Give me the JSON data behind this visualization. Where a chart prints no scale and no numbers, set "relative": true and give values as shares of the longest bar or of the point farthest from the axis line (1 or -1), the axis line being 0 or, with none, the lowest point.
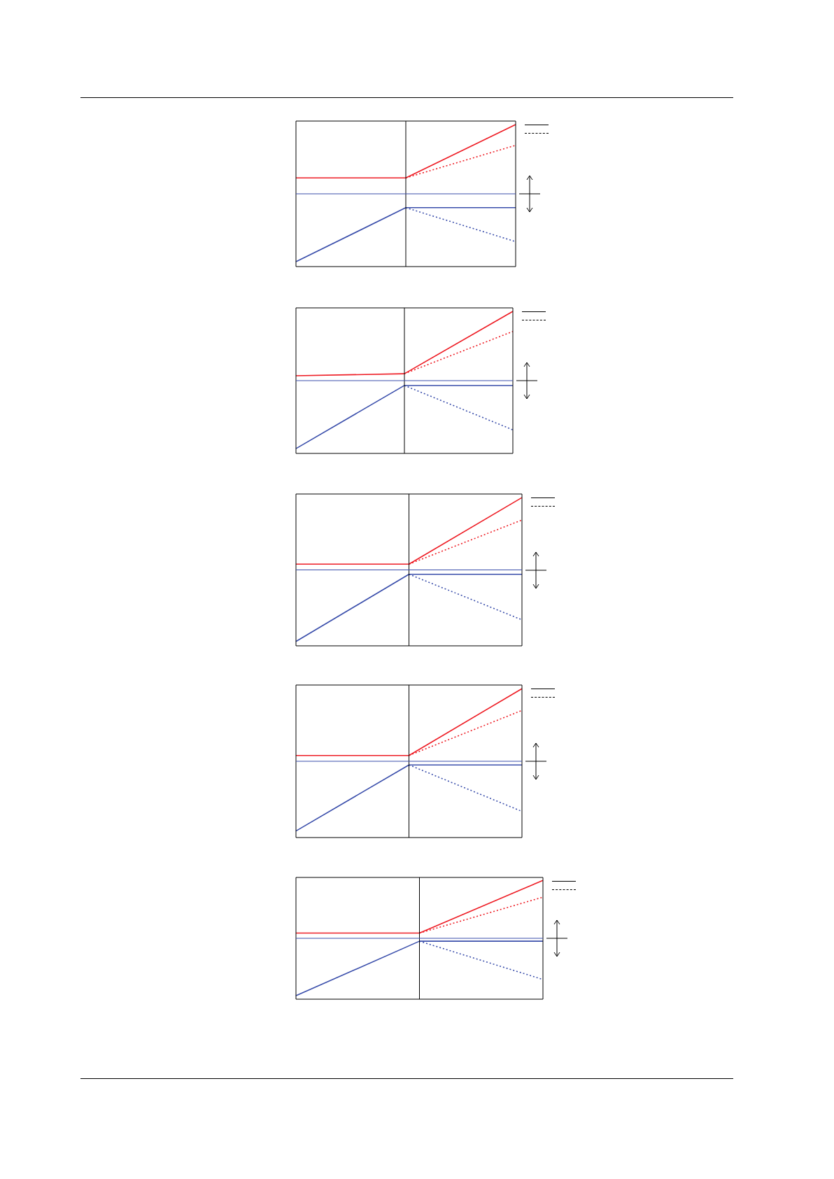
{
  "chart_data": [
    {
      "type": "line",
      "relative": true,
      "categories": [
        null,
        null,
        null
      ],
      "series": [
        {
          "color": "#ee1c24",
          "line_style": "solid",
          "values": [
            0.23,
            0.23,
            1
          ]
        },
        {
          "color": "#ee1c24",
          "line_style": "dotted",
          "values": [
            null,
            0.23,
            0.7
          ]
        },
        {
          "color": "#3a4eab",
          "line_style": "solid",
          "values": [
            -0.98,
            -0.2,
            -0.2
          ]
        },
        {
          "color": "#3a4eab",
          "line_style": "dotted",
          "values": [
            null,
            -0.2,
            -0.69
          ]
        }
      ],
      "ref_lines": [
        {
          "axis": "y",
          "value": 0,
          "color": "#3a4eab"
        }
      ]
    },
    {
      "type": "line",
      "relative": true,
      "categories": [
        null,
        null,
        null
      ],
      "series": [
        {
          "color": "#ee1c24",
          "line_style": "solid",
          "values": [
            0.07,
            0.1,
            1
          ]
        },
        {
          "color": "#ee1c24",
          "line_style": "dotted",
          "values": [
            null,
            0.1,
            0.71
          ]
        },
        {
          "color": "#3a4eab",
          "line_style": "solid",
          "values": [
            -0.98,
            -0.07,
            -0.07
          ]
        },
        {
          "color": "#3a4eab",
          "line_style": "dotted",
          "values": [
            null,
            -0.07,
            -0.71
          ]
        }
      ],
      "ref_lines": [
        {
          "axis": "y",
          "value": 0,
          "color": "#3a4eab"
        }
      ]
    },
    {
      "type": "line",
      "relative": true,
      "categories": [
        null,
        null,
        null
      ],
      "series": [
        {
          "color": "#ee1c24",
          "line_style": "solid",
          "values": [
            0.08,
            0.08,
            1
          ]
        },
        {
          "color": "#ee1c24",
          "line_style": "dotted",
          "values": [
            null,
            0.08,
            0.69
          ]
        },
        {
          "color": "#3a4eab",
          "line_style": "solid",
          "values": [
            -0.99,
            -0.06,
            -0.06
          ]
        },
        {
          "color": "#3a4eab",
          "line_style": "dotted",
          "values": [
            null,
            -0.06,
            -0.69
          ]
        }
      ],
      "ref_lines": [
        {
          "axis": "y",
          "value": 0,
          "color": "#3a4eab"
        }
      ]
    },
    {
      "type": "line",
      "relative": true,
      "categories": [
        null,
        null,
        null
      ],
      "series": [
        {
          "color": "#ee1c24",
          "line_style": "solid",
          "values": [
            0.08,
            0.08,
            1
          ]
        },
        {
          "color": "#ee1c24",
          "line_style": "dotted",
          "values": [
            null,
            0.08,
            0.7
          ]
        },
        {
          "color": "#3a4eab",
          "line_style": "solid",
          "values": [
            -0.96,
            -0.05,
            -0.05
          ]
        },
        {
          "color": "#3a4eab",
          "line_style": "dotted",
          "values": [
            null,
            -0.05,
            -0.69
          ]
        }
      ],
      "ref_lines": [
        {
          "axis": "y",
          "value": 0,
          "color": "#3a4eab"
        }
      ]
    },
    {
      "type": "line",
      "relative": true,
      "categories": [
        null,
        null,
        null
      ],
      "series": [
        {
          "color": "#ee1c24",
          "line_style": "solid",
          "values": [
            0.09,
            0.09,
            1
          ]
        },
        {
          "color": "#ee1c24",
          "line_style": "dotted",
          "values": [
            null,
            0.09,
            0.71
          ]
        },
        {
          "color": "#3a4eab",
          "line_style": "solid",
          "values": [
            -0.99,
            -0.05,
            -0.05
          ]
        },
        {
          "color": "#3a4eab",
          "line_style": "dotted",
          "values": [
            null,
            -0.05,
            -0.71
          ]
        }
      ],
      "ref_lines": [
        {
          "axis": "y",
          "value": 0,
          "color": "#3a4eab"
        }
      ]
    }
  ]
}
